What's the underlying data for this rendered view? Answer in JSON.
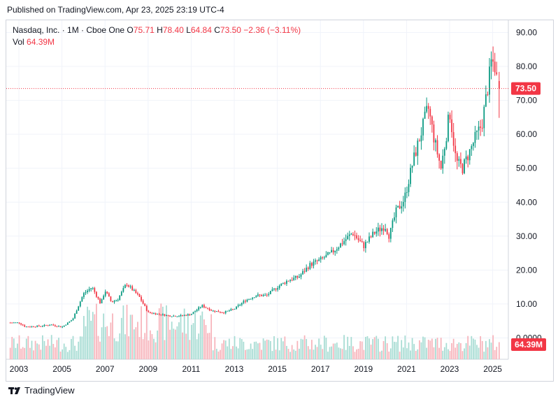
{
  "header": {
    "published": "Published on TradingView.com, Apr 23, 2025 23:19 UTC-4"
  },
  "legend": {
    "symbol": "Nasdaq, Inc. · 1M · Cboe One",
    "o_label": "O",
    "o_value": "75.71",
    "h_label": "H",
    "h_value": "78.40",
    "l_label": "L",
    "l_value": "64.84",
    "c_label": "C",
    "c_value": "73.50",
    "change": "−2.36 (−3.11%)",
    "vol_label": "Vol",
    "vol_value": "64.39M"
  },
  "footer": {
    "brand": "TradingView"
  },
  "colors": {
    "up": "#089981",
    "down": "#f23645",
    "vol_up": "#a7dcd3",
    "vol_down": "#f7b4bb",
    "grid": "#f0f3fa"
  },
  "chart_data": {
    "type": "candlestick",
    "interval": "1M",
    "ylim": [
      -5,
      92
    ],
    "y_ticks": [
      "90.00",
      "80.00",
      "70.00",
      "60.00",
      "50.00",
      "40.00",
      "30.00",
      "20.00",
      "10.00",
      "0.0000"
    ],
    "x_ticks": [
      "2003",
      "2005",
      "2007",
      "2009",
      "2011",
      "2013",
      "2015",
      "2017",
      "2019",
      "2021",
      "2023",
      "2025"
    ],
    "last_price_label": "73.50",
    "last_volume_label": "64.39M",
    "last_candle": {
      "open": 75.71,
      "high": 78.4,
      "low": 64.84,
      "close": 73.5
    },
    "price_path": [
      [
        2003.0,
        4.5
      ],
      [
        2003.3,
        3.3
      ],
      [
        2004.0,
        3.5
      ],
      [
        2004.5,
        3.9
      ],
      [
        2005.0,
        3.2
      ],
      [
        2005.5,
        5.5
      ],
      [
        2006.0,
        13.0
      ],
      [
        2006.4,
        15.0
      ],
      [
        2006.8,
        10.0
      ],
      [
        2007.0,
        14.0
      ],
      [
        2007.3,
        10.5
      ],
      [
        2007.6,
        11.5
      ],
      [
        2008.0,
        16.0
      ],
      [
        2008.3,
        14.0
      ],
      [
        2008.6,
        12.0
      ],
      [
        2009.0,
        7.5
      ],
      [
        2009.5,
        7.0
      ],
      [
        2010.0,
        6.5
      ],
      [
        2010.5,
        6.5
      ],
      [
        2011.0,
        7.0
      ],
      [
        2011.5,
        9.5
      ],
      [
        2012.0,
        8.0
      ],
      [
        2012.5,
        7.5
      ],
      [
        2013.0,
        8.5
      ],
      [
        2013.5,
        11.0
      ],
      [
        2014.0,
        12.5
      ],
      [
        2014.5,
        12.5
      ],
      [
        2015.0,
        15.0
      ],
      [
        2015.5,
        17.0
      ],
      [
        2016.0,
        18.0
      ],
      [
        2016.5,
        21.5
      ],
      [
        2017.0,
        23.0
      ],
      [
        2017.5,
        25.0
      ],
      [
        2018.0,
        28.0
      ],
      [
        2018.5,
        31.0
      ],
      [
        2019.0,
        27.0
      ],
      [
        2019.5,
        31.0
      ],
      [
        2020.0,
        33.0
      ],
      [
        2020.2,
        30.0
      ],
      [
        2020.5,
        37.0
      ],
      [
        2020.9,
        41.0
      ],
      [
        2021.3,
        52.0
      ],
      [
        2021.7,
        61.0
      ],
      [
        2022.0,
        68.0
      ],
      [
        2022.3,
        58.0
      ],
      [
        2022.6,
        50.0
      ],
      [
        2022.9,
        62.0
      ],
      [
        2023.0,
        67.0
      ],
      [
        2023.3,
        52.0
      ],
      [
        2023.6,
        50.0
      ],
      [
        2023.8,
        53.0
      ],
      [
        2024.0,
        56.0
      ],
      [
        2024.2,
        59.0
      ],
      [
        2024.5,
        63.0
      ],
      [
        2024.8,
        75.0
      ],
      [
        2024.95,
        82.0
      ],
      [
        2025.1,
        80.0
      ],
      [
        2025.2,
        76.0
      ],
      [
        2025.3,
        73.5
      ]
    ],
    "volume_range": {
      "min": 0,
      "max": "not shown"
    },
    "grid": true,
    "price_line": {
      "value": 73.5,
      "style": "dotted",
      "color": "#f23645"
    }
  }
}
